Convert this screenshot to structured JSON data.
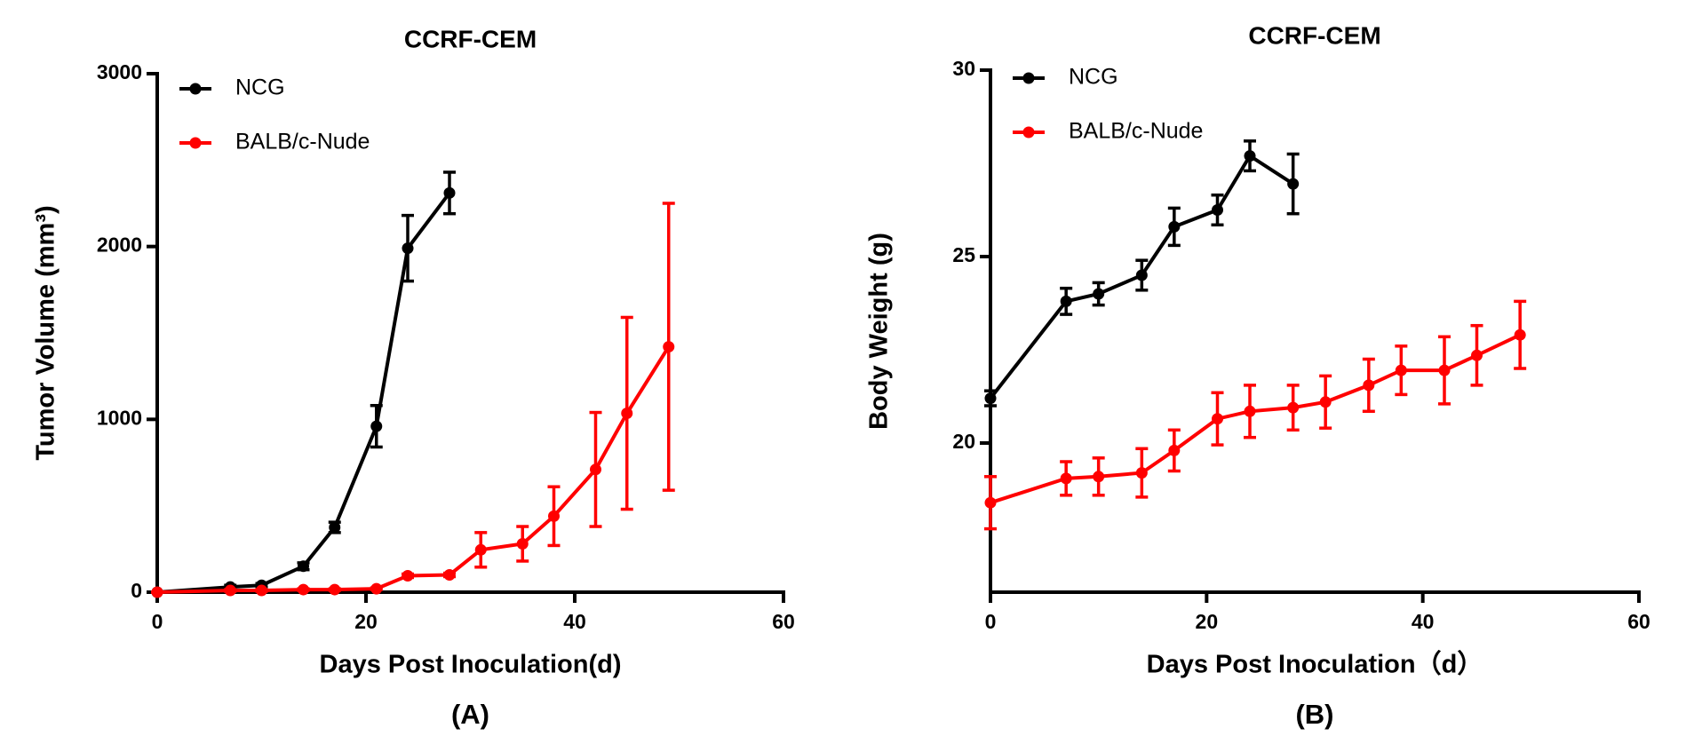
{
  "chart_data": [
    {
      "type": "line",
      "title": "CCRF-CEM",
      "xlabel": "Days Post Inoculation(d)",
      "ylabel": "Tumor Volume (mm³)",
      "panel_label": "(A)",
      "xlim": [
        0,
        60
      ],
      "xticks": [
        0,
        20,
        40,
        60
      ],
      "ylim": [
        0,
        3000
      ],
      "yticks": [
        0,
        1000,
        2000,
        3000
      ],
      "legend": "upper left",
      "series": [
        {
          "name": "NCG",
          "color": "#000000",
          "x": [
            0,
            7,
            10,
            14,
            17,
            21,
            24,
            28
          ],
          "values": [
            0,
            30,
            40,
            150,
            375,
            960,
            1990,
            2310
          ],
          "errors": [
            0,
            10,
            10,
            20,
            30,
            120,
            190,
            120
          ]
        },
        {
          "name": "BALB/c-Nude",
          "color": "#ff0000",
          "x": [
            0,
            7,
            10,
            14,
            17,
            21,
            24,
            28,
            31,
            35,
            38,
            42,
            45,
            49
          ],
          "values": [
            0,
            10,
            10,
            15,
            15,
            20,
            95,
            100,
            245,
            280,
            440,
            710,
            1035,
            1420
          ],
          "errors": [
            0,
            5,
            5,
            5,
            5,
            5,
            10,
            10,
            100,
            100,
            170,
            330,
            555,
            830
          ]
        }
      ]
    },
    {
      "type": "line",
      "title": "CCRF-CEM",
      "xlabel": "Days Post Inoculation（d）",
      "ylabel": "Body Weight (g)",
      "panel_label": "(B)",
      "xlim": [
        0,
        60
      ],
      "xticks": [
        0,
        20,
        40,
        60
      ],
      "ylim": [
        16,
        30
      ],
      "yticks": [
        20,
        25,
        30
      ],
      "legend": "upper left",
      "series": [
        {
          "name": "NCG",
          "color": "#000000",
          "x": [
            0,
            7,
            10,
            14,
            17,
            21,
            24,
            28
          ],
          "values": [
            21.2,
            23.8,
            24.0,
            24.5,
            25.8,
            26.25,
            27.7,
            26.95
          ],
          "errors": [
            0.2,
            0.35,
            0.3,
            0.4,
            0.5,
            0.4,
            0.4,
            0.8
          ]
        },
        {
          "name": "BALB/c-Nude",
          "color": "#ff0000",
          "x": [
            0,
            7,
            10,
            14,
            17,
            21,
            24,
            28,
            31,
            35,
            38,
            42,
            45,
            49
          ],
          "values": [
            18.4,
            19.05,
            19.1,
            19.2,
            19.8,
            20.65,
            20.85,
            20.95,
            21.1,
            21.55,
            21.95,
            21.95,
            22.35,
            22.9
          ],
          "errors": [
            0.7,
            0.45,
            0.5,
            0.65,
            0.55,
            0.7,
            0.7,
            0.6,
            0.7,
            0.7,
            0.65,
            0.9,
            0.8,
            0.9
          ]
        }
      ]
    }
  ]
}
